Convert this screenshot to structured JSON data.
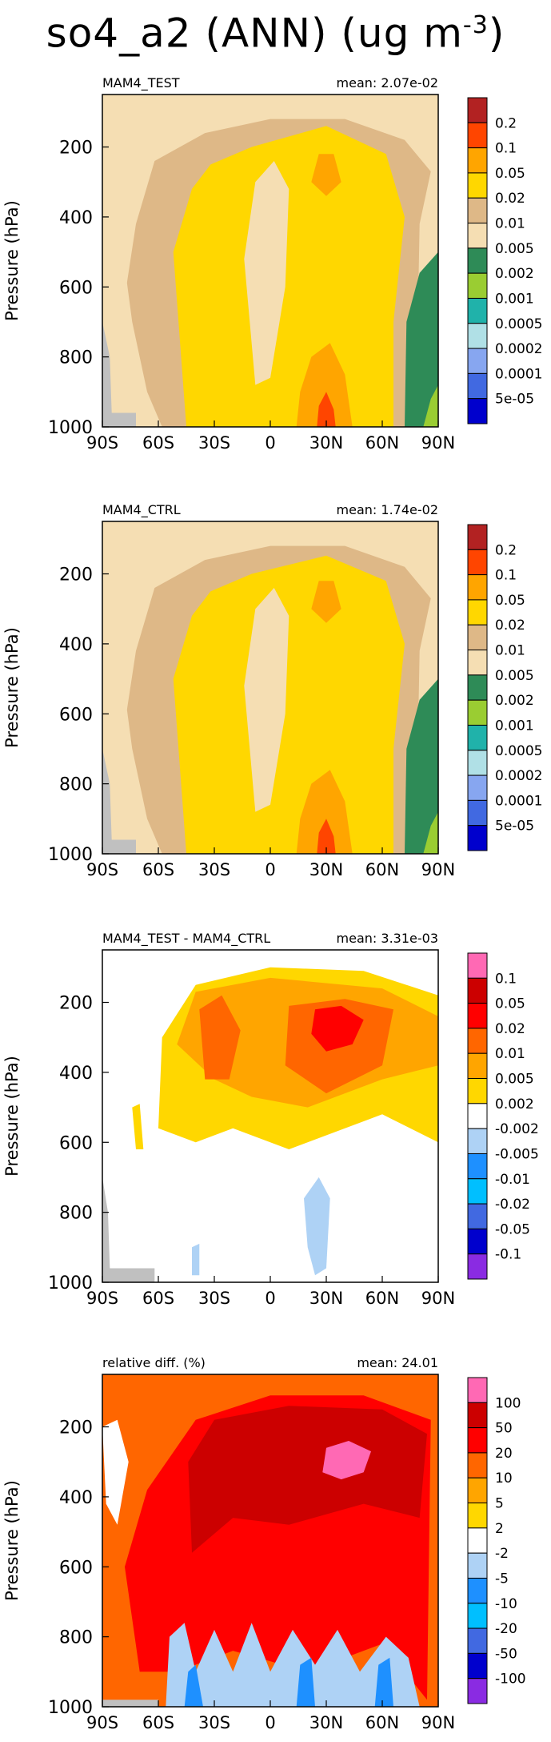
{
  "title": "so4_a2 (ANN) (ug m",
  "title_exponent": "-3",
  "title_close": ")",
  "chart_data": [
    {
      "type": "heatmap",
      "name": "MAM4_TEST",
      "mean_label": "mean: 2.07e-02",
      "ylabel": "Pressure (hPa)",
      "yticks": [
        200,
        400,
        600,
        800,
        1000
      ],
      "ylim": [
        1000,
        50
      ],
      "xticks": [
        "90S",
        "60S",
        "30S",
        "0",
        "30N",
        "60N",
        "90N"
      ],
      "xlim": [
        -90,
        90
      ],
      "colorbar_labels": [
        "0.2",
        "0.1",
        "0.05",
        "0.02",
        "0.01",
        "0.005",
        "0.002",
        "0.001",
        "0.0005",
        "0.0002",
        "0.0001",
        "5e-05"
      ],
      "colorbar_colors": [
        "#b22222",
        "#ff4500",
        "#ffa500",
        "#ffd700",
        "#deb887",
        "#f5deb3",
        "#2e8b57",
        "#9acd32",
        "#20b2aa",
        "#b0e0e6",
        "#87a6f0",
        "#4169e1",
        "#0000cd"
      ]
    },
    {
      "type": "heatmap",
      "name": "MAM4_CTRL",
      "mean_label": "mean: 1.74e-02",
      "ylabel": "Pressure (hPa)",
      "yticks": [
        200,
        400,
        600,
        800,
        1000
      ],
      "ylim": [
        1000,
        50
      ],
      "xticks": [
        "90S",
        "60S",
        "30S",
        "0",
        "30N",
        "60N",
        "90N"
      ],
      "xlim": [
        -90,
        90
      ],
      "colorbar_labels": [
        "0.2",
        "0.1",
        "0.05",
        "0.02",
        "0.01",
        "0.005",
        "0.002",
        "0.001",
        "0.0005",
        "0.0002",
        "0.0001",
        "5e-05"
      ],
      "colorbar_colors": [
        "#b22222",
        "#ff4500",
        "#ffa500",
        "#ffd700",
        "#deb887",
        "#f5deb3",
        "#2e8b57",
        "#9acd32",
        "#20b2aa",
        "#b0e0e6",
        "#87a6f0",
        "#4169e1",
        "#0000cd"
      ]
    },
    {
      "type": "heatmap",
      "name": "MAM4_TEST - MAM4_CTRL",
      "mean_label": "mean: 3.31e-03",
      "ylabel": "Pressure (hPa)",
      "yticks": [
        200,
        400,
        600,
        800,
        1000
      ],
      "ylim": [
        1000,
        50
      ],
      "xticks": [
        "90S",
        "60S",
        "30S",
        "0",
        "30N",
        "60N",
        "90N"
      ],
      "xlim": [
        -90,
        90
      ],
      "colorbar_labels": [
        "0.1",
        "0.05",
        "0.02",
        "0.01",
        "0.005",
        "0.002",
        "-0.002",
        "-0.005",
        "-0.01",
        "-0.02",
        "-0.05",
        "-0.1"
      ],
      "colorbar_colors": [
        "#ff69b4",
        "#cc0000",
        "#ff0000",
        "#ff6600",
        "#ffa500",
        "#ffd700",
        "#ffffff",
        "#aed2f5",
        "#1e90ff",
        "#00bfff",
        "#4169e1",
        "#0000cd",
        "#8a2be2"
      ]
    },
    {
      "type": "heatmap",
      "name": "relative diff. (%)",
      "mean_label": "mean: 24.01",
      "ylabel": "Pressure (hPa)",
      "yticks": [
        200,
        400,
        600,
        800,
        1000
      ],
      "ylim": [
        1000,
        50
      ],
      "xticks": [
        "90S",
        "60S",
        "30S",
        "0",
        "30N",
        "60N",
        "90N"
      ],
      "xlim": [
        -90,
        90
      ],
      "colorbar_labels": [
        "100",
        "50",
        "20",
        "10",
        "5",
        "2",
        "-2",
        "-5",
        "-10",
        "-20",
        "-50",
        "-100"
      ],
      "colorbar_colors": [
        "#ff69b4",
        "#cc0000",
        "#ff0000",
        "#ff6600",
        "#ffa500",
        "#ffd700",
        "#ffffff",
        "#aed2f5",
        "#1e90ff",
        "#00bfff",
        "#4169e1",
        "#0000cd",
        "#8a2be2"
      ]
    }
  ]
}
